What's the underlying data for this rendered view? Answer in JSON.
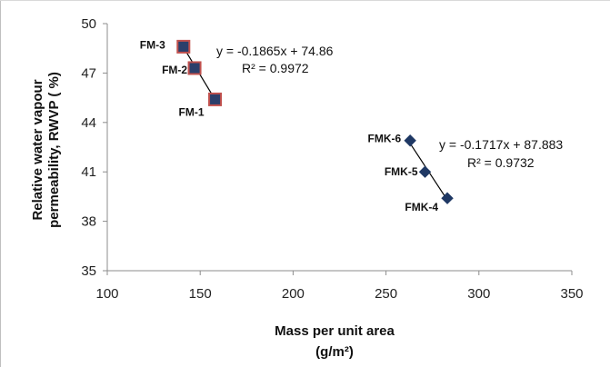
{
  "chart_data": {
    "type": "scatter",
    "xlabel": "Mass per unit area",
    "xlabel_unit": "(g/m²)",
    "ylabel": "Relative water vapour",
    "ylabel_line2": "permeability, RWVP ( %)",
    "xlim": [
      100,
      350
    ],
    "ylim": [
      35,
      50
    ],
    "xticks": [
      "100",
      "150",
      "200",
      "250",
      "300",
      "350"
    ],
    "yticks": [
      "35",
      "38",
      "41",
      "44",
      "47",
      "50"
    ],
    "grid": false,
    "series": [
      {
        "marker": "square",
        "color": "#2b3f6b",
        "edge_color": "#c0504d",
        "points": [
          {
            "label": "FM-3",
            "x": 141,
            "y": 48.6
          },
          {
            "label": "FM-2",
            "x": 147,
            "y": 47.3
          },
          {
            "label": "FM-1",
            "x": 158,
            "y": 45.4
          }
        ],
        "trendline": {
          "slope": -0.1865,
          "intercept": 74.86,
          "x_range": [
            141,
            158
          ]
        },
        "equation": "y = -0.1865x + 74.86",
        "r2": "R² = 0.9972"
      },
      {
        "marker": "diamond",
        "color": "#1f3864",
        "edge_color": "#1f3864",
        "points": [
          {
            "label": "FMK-6",
            "x": 263,
            "y": 42.9
          },
          {
            "label": "FMK-5",
            "x": 271,
            "y": 41.0
          },
          {
            "label": "FMK-4",
            "x": 283,
            "y": 39.4
          }
        ],
        "trendline": {
          "slope": -0.1717,
          "intercept": 87.883,
          "x_range": [
            263,
            283
          ]
        },
        "equation": "y = -0.1717x + 87.883",
        "r2": "R² = 0.9732"
      }
    ]
  },
  "colors": {
    "axis": "#8c8c8c",
    "trendline": "#000000",
    "frame": "#bfbfbf"
  }
}
